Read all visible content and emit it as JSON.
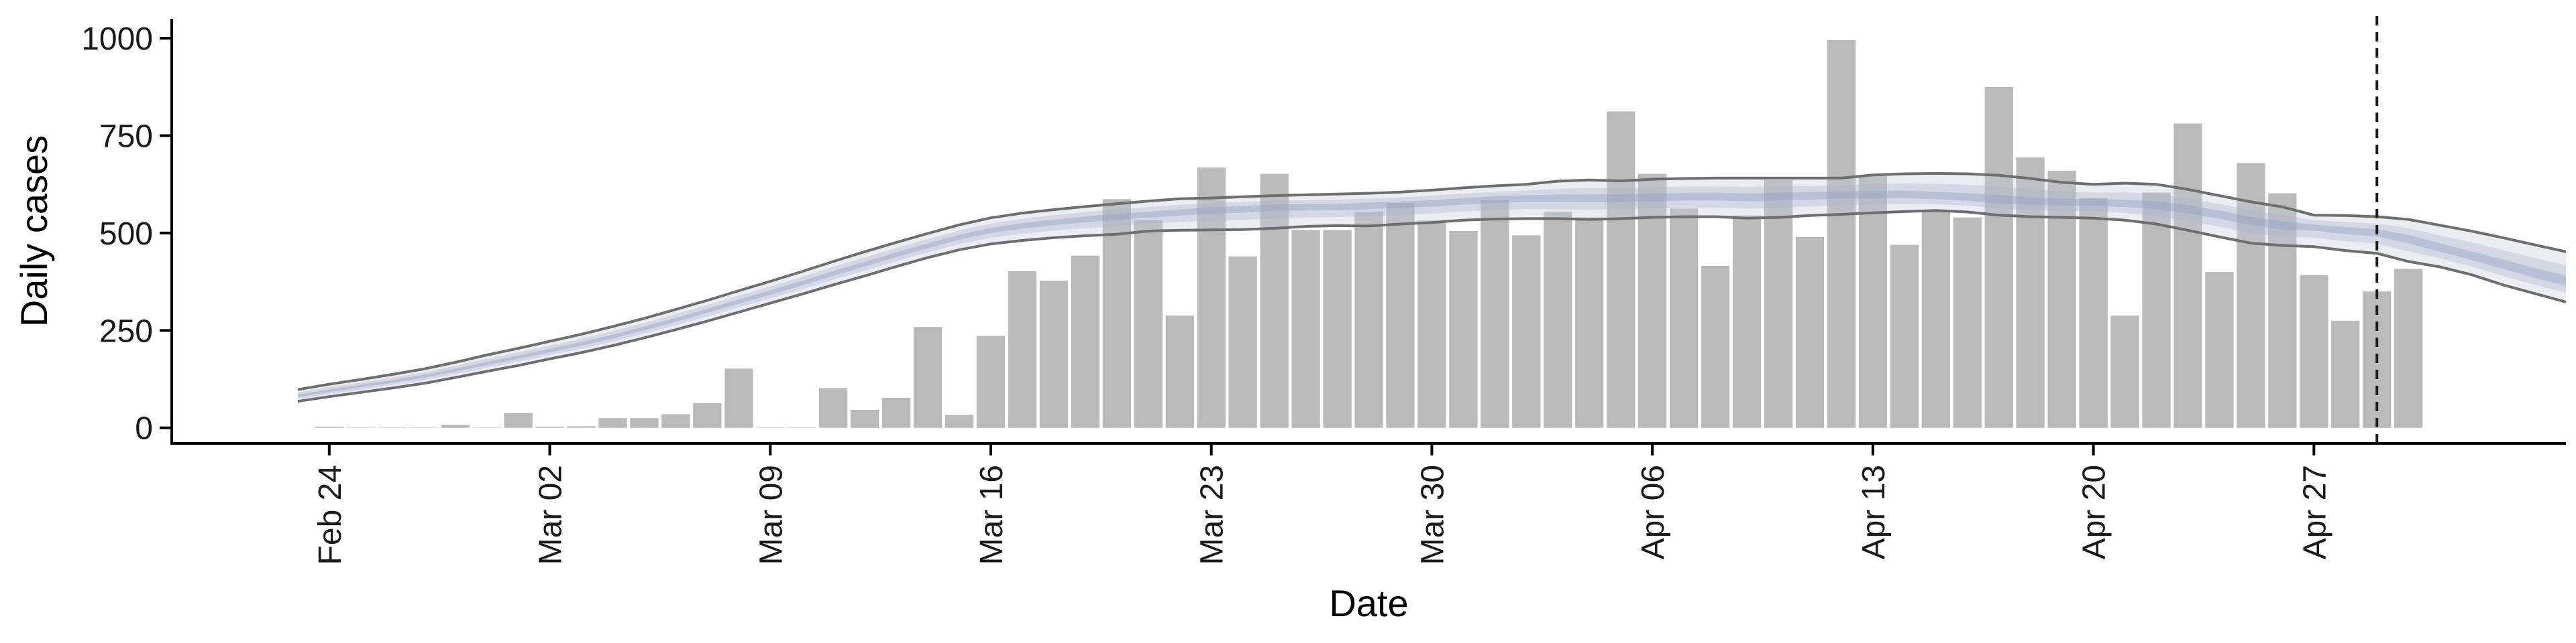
{
  "colors": {
    "bar": "#bababa",
    "ribbon_outer": "#c6ccdc",
    "ribbon_inner": "#aab3cc",
    "median": "#98a4c2",
    "ci_line": "#6e6e6e",
    "axis": "#000000",
    "vline": "#1a1a1a"
  },
  "chart_data": {
    "type": "bar",
    "xlabel": "Date",
    "ylabel": "Daily cases",
    "ylim": [
      -40,
      1050
    ],
    "yticks": [
      0,
      250,
      500,
      750,
      1000
    ],
    "xtick_labels": [
      "Feb 24",
      "Mar 02",
      "Mar 09",
      "Mar 16",
      "Mar 23",
      "Mar 30",
      "Apr 06",
      "Apr 13",
      "Apr 20",
      "Apr 27"
    ],
    "xtick_dates": [
      "2020-02-24",
      "2020-03-02",
      "2020-03-09",
      "2020-03-16",
      "2020-03-23",
      "2020-03-30",
      "2020-04-06",
      "2020-04-13",
      "2020-04-20",
      "2020-04-27"
    ],
    "xlim": [
      "2020-02-19",
      "2020-05-05"
    ],
    "grid": false,
    "bars": {
      "start": "2020-02-24",
      "values": [
        3,
        0,
        0,
        0,
        8,
        0,
        38,
        3,
        4,
        25,
        25,
        35,
        63,
        152,
        0,
        0,
        102,
        46,
        77,
        259,
        33,
        236,
        402,
        378,
        442,
        587,
        533,
        288,
        668,
        440,
        652,
        508,
        508,
        555,
        577,
        532,
        505,
        585,
        494,
        555,
        540,
        812,
        652,
        563,
        416,
        545,
        636,
        490,
        995,
        648,
        470,
        554,
        540,
        875,
        694,
        660,
        590,
        288,
        604,
        781,
        400,
        680,
        602,
        392,
        275,
        350,
        408
      ]
    },
    "estimate": {
      "start": "2020-02-23",
      "median": [
        82,
        95,
        107,
        119,
        132,
        148,
        165,
        181,
        198,
        215,
        234,
        255,
        277,
        300,
        324,
        347,
        371,
        396,
        420,
        444,
        467,
        489,
        507,
        519,
        528,
        536,
        543,
        548,
        554,
        560,
        563,
        568,
        568,
        568,
        572,
        575,
        578,
        583,
        588,
        590,
        590,
        590,
        590,
        592,
        594,
        594,
        592,
        594,
        596,
        598,
        598,
        598,
        594,
        590,
        584,
        580,
        578,
        578,
        575,
        571,
        561,
        548,
        532,
        520,
        516,
        508,
        502,
        485,
        462,
        440,
        418,
        395,
        375
      ],
      "ci_lower": [
        68,
        80,
        91,
        102,
        114,
        129,
        145,
        160,
        177,
        193,
        211,
        231,
        252,
        274,
        297,
        320,
        343,
        367,
        390,
        414,
        437,
        457,
        472,
        481,
        488,
        493,
        497,
        505,
        507,
        508,
        509,
        512,
        517,
        519,
        518,
        523,
        527,
        533,
        536,
        537,
        537,
        535,
        537,
        540,
        542,
        542,
        538,
        540,
        545,
        548,
        552,
        555,
        558,
        554,
        546,
        542,
        540,
        538,
        533,
        523,
        507,
        490,
        474,
        468,
        465,
        455,
        448,
        427,
        413,
        393,
        367,
        345,
        323
      ],
      "ci_upper": [
        98,
        112,
        124,
        137,
        151,
        168,
        187,
        204,
        222,
        240,
        260,
        281,
        304,
        327,
        352,
        376,
        401,
        427,
        452,
        476,
        499,
        521,
        539,
        551,
        560,
        568,
        575,
        582,
        588,
        590,
        593,
        596,
        598,
        600,
        602,
        605,
        610,
        616,
        621,
        625,
        633,
        636,
        634,
        638,
        640,
        641,
        641,
        641,
        641,
        641,
        649,
        652,
        653,
        652,
        648,
        640,
        630,
        625,
        628,
        625,
        612,
        596,
        580,
        567,
        546,
        545,
        542,
        535,
        520,
        505,
        488,
        470,
        452
      ]
    },
    "vline": "2020-04-29"
  }
}
